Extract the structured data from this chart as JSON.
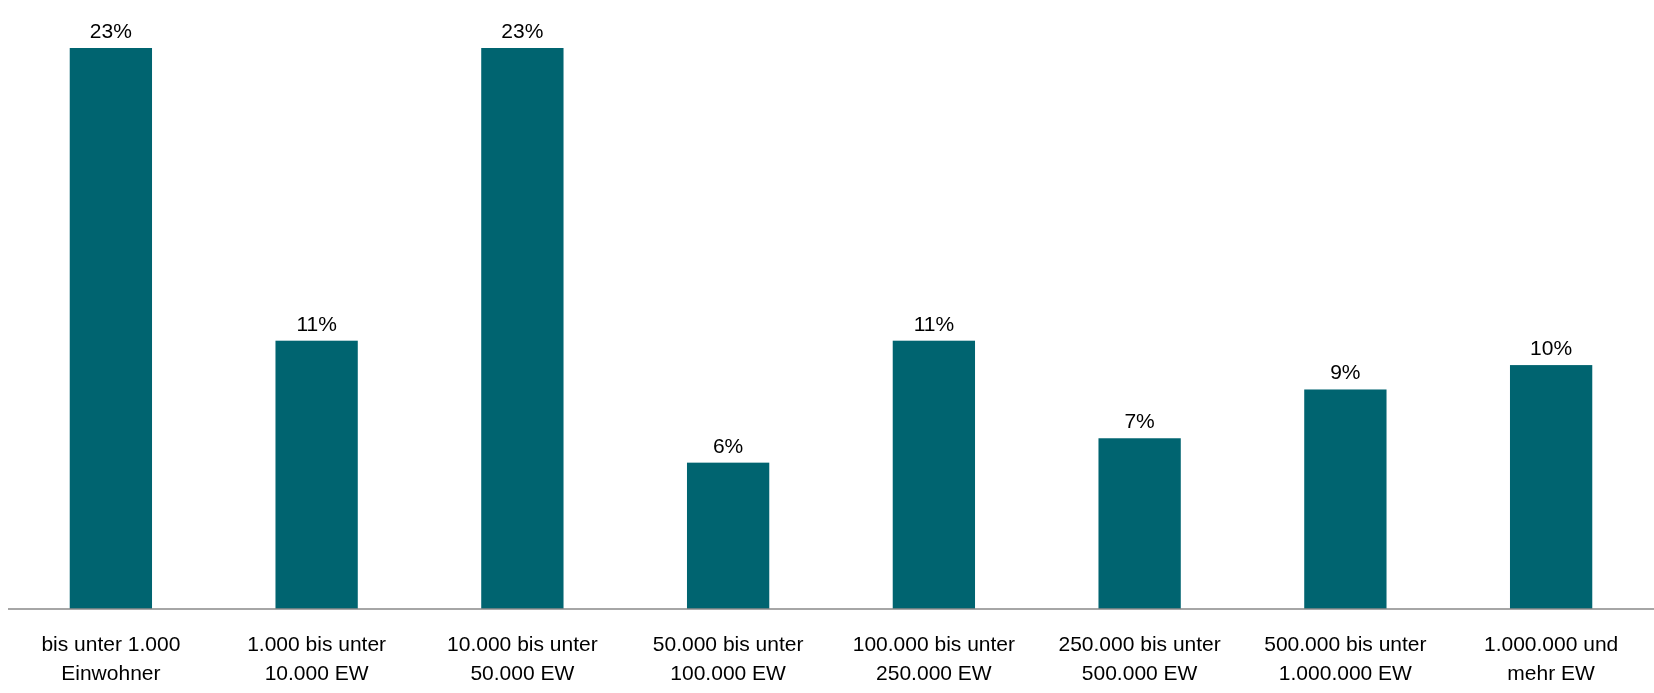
{
  "chart_data": {
    "type": "bar",
    "categories": [
      "bis unter 1.000 Einwohner",
      "1.000 bis unter 10.000 EW",
      "10.000 bis unter 50.000 EW",
      "50.000 bis unter 100.000 EW",
      "100.000 bis unter 250.000 EW",
      "250.000 bis unter 500.000 EW",
      "500.000 bis unter 1.000.000 EW",
      "1.000.000 und mehr EW"
    ],
    "values": [
      23,
      11,
      23,
      6,
      11,
      7,
      9,
      10
    ],
    "value_labels": [
      "23%",
      "11%",
      "23%",
      "6%",
      "11%",
      "7%",
      "9%",
      "10%"
    ],
    "color": "#006470"
  }
}
